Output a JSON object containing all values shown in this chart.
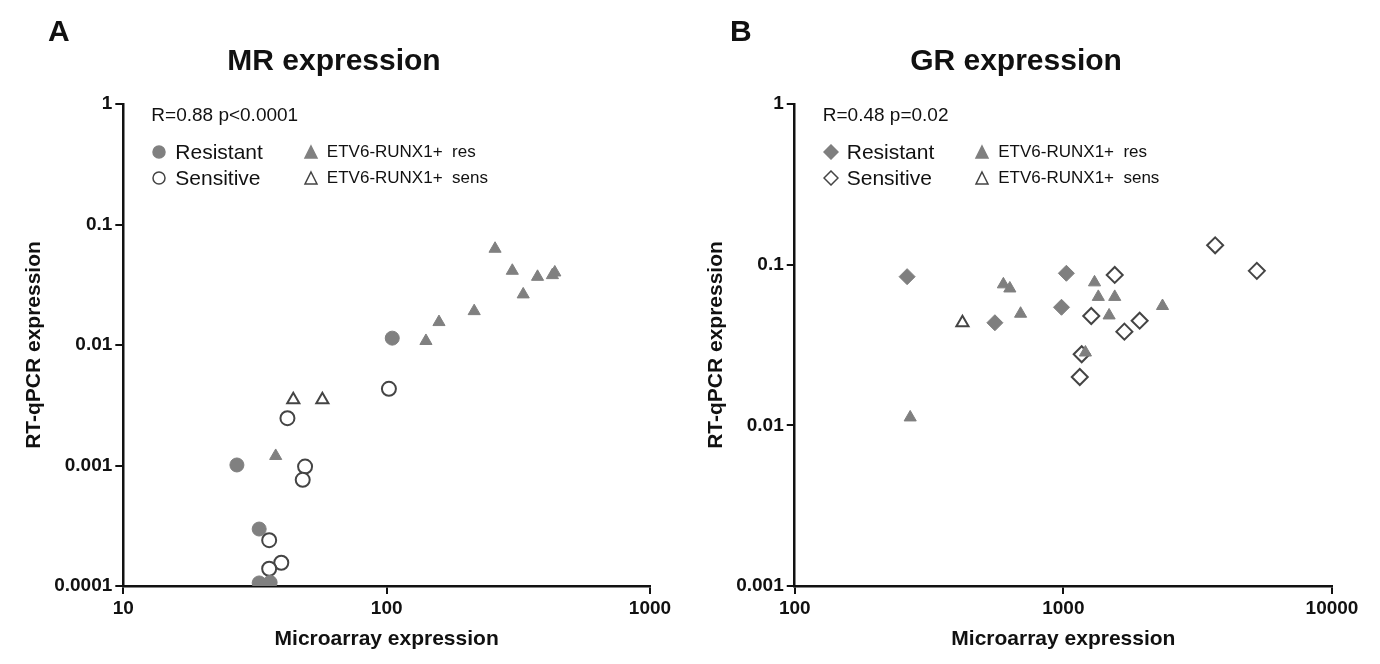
{
  "chart_data": [
    {
      "type": "scatter",
      "title": "MR expression",
      "xlabel": "Microarray expression",
      "ylabel": "RT-qPCR expression",
      "annotations": [
        "A",
        "R=0.88 p<0.0001"
      ],
      "log": "xy",
      "xlim": [
        10,
        1000
      ],
      "ylim": [
        0.0001,
        1
      ],
      "xticks": [
        10,
        100,
        1000
      ],
      "yticks": [
        0.0001,
        0.001,
        0.01,
        0.1,
        1
      ],
      "grid": false,
      "legend": "top left",
      "series": [
        {
          "name": "Resistant",
          "color": "#808080",
          "marker": "circle",
          "x": [
            105,
            27,
            32.8,
            32.8,
            36.1
          ],
          "values": [
            0.0114,
            0.00101,
            0.000297,
            0.000106,
            0.000107
          ]
        },
        {
          "name": "Sensitive",
          "color": "#ffffff",
          "marker": "circle",
          "x": [
            102,
            42,
            49,
            48,
            35.8,
            39.8,
            35.8
          ],
          "values": [
            0.00433,
            0.00247,
            0.00098,
            0.00076,
            0.00024,
            0.000156,
            0.000139
          ]
        },
        {
          "name": "ETV6-RUNX1+  res",
          "color": "#808080",
          "marker": "triangle",
          "x": [
            258,
            300,
            374,
            435,
            426,
            330,
            215,
            158,
            141,
            37.9
          ],
          "values": [
            0.0629,
            0.0413,
            0.0368,
            0.04,
            0.038,
            0.0263,
            0.0191,
            0.0155,
            0.0108,
            0.0012
          ]
        },
        {
          "name": "ETV6-RUNX1+  sens",
          "color": "#ffffff",
          "marker": "triangle",
          "x": [
            44.2,
            57
          ],
          "values": [
            0.00352,
            0.00352
          ]
        }
      ]
    },
    {
      "type": "scatter",
      "title": "GR expression",
      "xlabel": "Microarray expression",
      "ylabel": "RT-qPCR expression",
      "annotations": [
        "B",
        "R=0.48 p=0.02"
      ],
      "log": "xy",
      "xlim": [
        100,
        10000
      ],
      "ylim": [
        0.001,
        1
      ],
      "xticks": [
        100,
        1000,
        10000
      ],
      "yticks": [
        0.001,
        0.01,
        0.1,
        1
      ],
      "grid": false,
      "legend": "top left",
      "series": [
        {
          "name": "Resistant",
          "color": "#7f7f7f",
          "marker": "diamond",
          "x": [
            262,
            556,
            1026,
            984
          ],
          "values": [
            0.0842,
            0.0435,
            0.0884,
            0.0543
          ]
        },
        {
          "name": "Sensitive",
          "color": "#ffffff",
          "marker": "diamond",
          "x": [
            3673,
            5250,
            1553,
            1270,
            1923,
            1687,
            1170,
            1151
          ],
          "values": [
            0.132,
            0.0915,
            0.0863,
            0.0479,
            0.0448,
            0.0383,
            0.0277,
            0.02
          ]
        },
        {
          "name": "ETV6-RUNX1+  res",
          "color": "#7f7f7f",
          "marker": "triangle",
          "x": [
            269,
            598,
            632,
            693,
            1306,
            1349,
            1553,
            1480,
            2339,
            1208
          ],
          "values": [
            0.0112,
            0.0754,
            0.0711,
            0.0495,
            0.0776,
            0.063,
            0.063,
            0.0483,
            0.0553,
            0.0284
          ]
        },
        {
          "name": "ETV6-RUNX1+  sens",
          "color": "#ffffff",
          "marker": "triangle",
          "x": [
            421
          ],
          "values": [
            0.0435
          ]
        }
      ]
    }
  ]
}
